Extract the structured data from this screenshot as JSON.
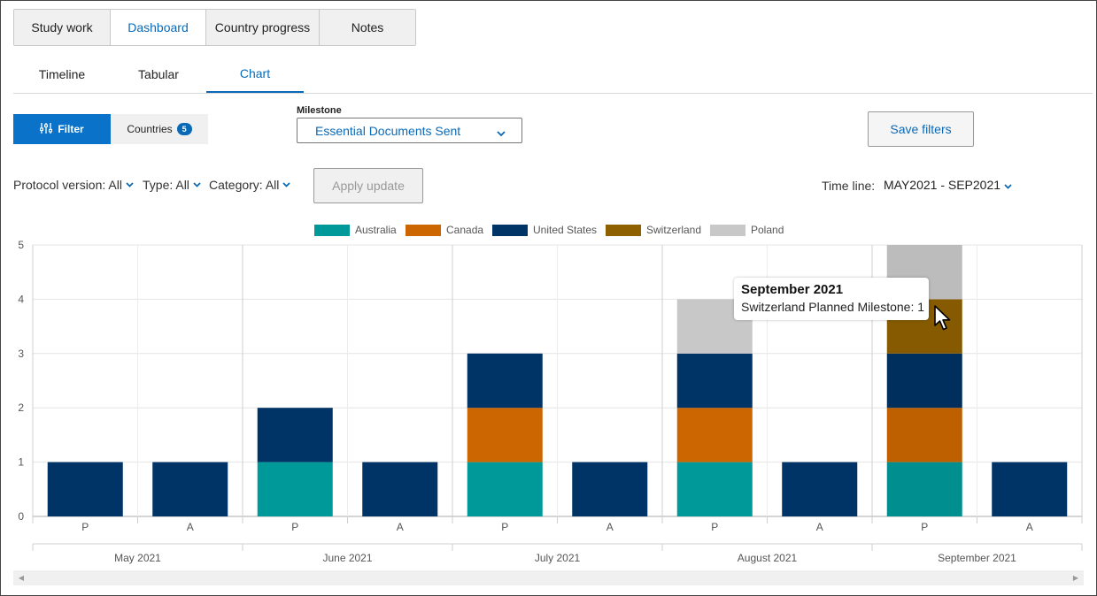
{
  "top_tabs": [
    {
      "label": "Study work"
    },
    {
      "label": "Dashboard"
    },
    {
      "label": "Country progress"
    },
    {
      "label": "Notes"
    }
  ],
  "sub_tabs": [
    {
      "label": "Timeline"
    },
    {
      "label": "Tabular"
    },
    {
      "label": "Chart"
    }
  ],
  "filters": {
    "filter_label": "Filter",
    "countries_label": "Countries",
    "countries_count": "5",
    "milestone_label": "Milestone",
    "milestone_value": "Essential Documents Sent",
    "save_label": "Save filters",
    "protocol_version": "Protocol version: All",
    "type": "Type: All",
    "category": "Category: All",
    "apply_label": "Apply update",
    "timeline_label": "Time line:",
    "timeline_value": "MAY2021 - SEP2021"
  },
  "tooltip": {
    "title": "September 2021",
    "body": "Switzerland Planned Milestone: 1"
  },
  "colors": {
    "accent": "#0a6ab7",
    "filter_button": "#0a73c9"
  },
  "chart_data": {
    "type": "bar",
    "stacked": true,
    "legend_position": "top",
    "grid": true,
    "ylim": [
      0,
      5
    ],
    "yticks": [
      "0",
      "1",
      "2",
      "3",
      "4",
      "5"
    ],
    "groups": [
      "May 2021",
      "June 2021",
      "July 2021",
      "August 2021",
      "September 2021"
    ],
    "subcategories": [
      "P",
      "A"
    ],
    "series": [
      {
        "name": "Australia",
        "color": "#00999a",
        "values": [
          [
            0,
            0
          ],
          [
            1,
            0
          ],
          [
            1,
            0
          ],
          [
            1,
            0
          ],
          [
            1,
            0
          ]
        ]
      },
      {
        "name": "Canada",
        "color": "#cc6600",
        "values": [
          [
            0,
            0
          ],
          [
            0,
            0
          ],
          [
            1,
            0
          ],
          [
            1,
            0
          ],
          [
            1,
            0
          ]
        ]
      },
      {
        "name": "United States",
        "color": "#003366",
        "values": [
          [
            1,
            1
          ],
          [
            1,
            1
          ],
          [
            1,
            1
          ],
          [
            1,
            1
          ],
          [
            1,
            1
          ]
        ]
      },
      {
        "name": "Switzerland",
        "color": "#8e6000",
        "values": [
          [
            0,
            0
          ],
          [
            0,
            0
          ],
          [
            0,
            0
          ],
          [
            0,
            0
          ],
          [
            1,
            0
          ]
        ]
      },
      {
        "name": "Poland",
        "color": "#c8c8c8",
        "values": [
          [
            0,
            0
          ],
          [
            0,
            0
          ],
          [
            0,
            0
          ],
          [
            1,
            0
          ],
          [
            1,
            0
          ]
        ]
      }
    ]
  }
}
